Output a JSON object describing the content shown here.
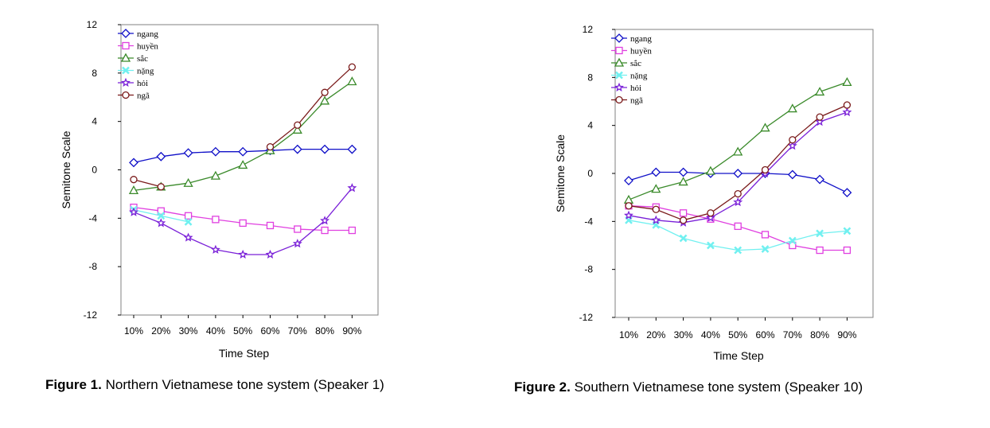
{
  "colors": {
    "ngang": "#1010c8",
    "huyền": "#e040e0",
    "sắc": "#3a8a2a",
    "nặng": "#70f0f0",
    "hỏi": "#7a20d8",
    "ngã": "#7a1a1a"
  },
  "chart_data": [
    {
      "type": "line",
      "xlabel": "Time Step",
      "ylabel": "Semitone Scale",
      "ylim": [
        -12,
        12
      ],
      "yticks": [
        12,
        8,
        4,
        0,
        -4,
        -8,
        -12
      ],
      "categories": [
        "10%",
        "20%",
        "30%",
        "40%",
        "50%",
        "60%",
        "70%",
        "80%",
        "90%"
      ],
      "legend": "top-left",
      "caption_bold": "Figure 1.",
      "caption": " Northern Vietnamese tone system (Speaker 1)",
      "series": [
        {
          "name": "ngang",
          "marker": "diamond",
          "values": [
            0.6,
            1.1,
            1.4,
            1.5,
            1.5,
            1.6,
            1.7,
            1.7,
            1.7
          ]
        },
        {
          "name": "huyền",
          "marker": "square",
          "values": [
            -3.1,
            -3.4,
            -3.8,
            -4.1,
            -4.4,
            -4.6,
            -4.9,
            -5.0,
            -5.0
          ]
        },
        {
          "name": "sắc",
          "marker": "triangle",
          "values": [
            -1.7,
            -1.4,
            -1.1,
            -0.5,
            0.4,
            1.6,
            3.3,
            5.7,
            7.3
          ]
        },
        {
          "name": "nặng",
          "marker": "x",
          "values": [
            -3.3,
            -3.8,
            -4.3,
            null,
            null,
            null,
            null,
            null,
            null
          ]
        },
        {
          "name": "hỏi",
          "marker": "star",
          "values": [
            -3.5,
            -4.4,
            -5.6,
            -6.6,
            -7.0,
            -7.0,
            -6.1,
            -4.2,
            -1.5
          ]
        },
        {
          "name": "ngã",
          "marker": "circle",
          "values": [
            -0.8,
            -1.4,
            null,
            null,
            null,
            1.9,
            3.7,
            6.4,
            8.5
          ]
        }
      ]
    },
    {
      "type": "line",
      "xlabel": "Time Step",
      "ylabel": "Semitone Scale",
      "ylim": [
        -12,
        12
      ],
      "yticks": [
        12,
        8,
        4,
        0,
        -4,
        -8,
        -12
      ],
      "categories": [
        "10%",
        "20%",
        "30%",
        "40%",
        "50%",
        "60%",
        "70%",
        "80%",
        "90%"
      ],
      "legend": "top-left",
      "caption_bold": "Figure 2.",
      "caption": " Southern Vietnamese tone system (Speaker 10)",
      "series": [
        {
          "name": "ngang",
          "marker": "diamond",
          "values": [
            -0.6,
            0.1,
            0.1,
            0.0,
            0.0,
            0.0,
            -0.1,
            -0.5,
            -1.6
          ]
        },
        {
          "name": "huyền",
          "marker": "square",
          "values": [
            -2.7,
            -2.8,
            -3.3,
            -3.8,
            -4.4,
            -5.1,
            -6.0,
            -6.4,
            -6.4
          ]
        },
        {
          "name": "sắc",
          "marker": "triangle",
          "values": [
            -2.2,
            -1.3,
            -0.7,
            0.2,
            1.8,
            3.8,
            5.4,
            6.8,
            7.6
          ]
        },
        {
          "name": "nặng",
          "marker": "x",
          "values": [
            -3.9,
            -4.3,
            -5.4,
            -6.0,
            -6.4,
            -6.3,
            -5.6,
            -5.0,
            -4.8
          ]
        },
        {
          "name": "hỏi",
          "marker": "star",
          "values": [
            -3.5,
            -3.9,
            -4.1,
            -3.7,
            -2.4,
            0.0,
            2.3,
            4.3,
            5.1
          ]
        },
        {
          "name": "ngã",
          "marker": "circle",
          "values": [
            -2.7,
            -3.0,
            -3.9,
            -3.3,
            -1.7,
            0.3,
            2.8,
            4.7,
            5.7
          ]
        }
      ]
    }
  ]
}
